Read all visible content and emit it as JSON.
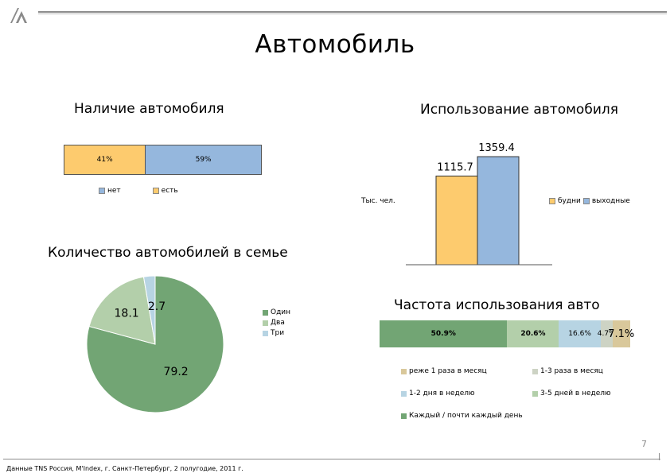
{
  "slide": {
    "title": "Автомобиль",
    "page_number": "7",
    "footer_source": "Данные TNS Россия, M'Index, г. Санкт-Петербург, 2 полугодие, 2011 г."
  },
  "chart_data": [
    {
      "id": "ownership",
      "type": "bar",
      "title": "Наличие автомобиля",
      "stacked": true,
      "orientation": "horizontal",
      "series": [
        {
          "name": "есть",
          "value": 41,
          "label": "41%",
          "color": "#FDCB6E"
        },
        {
          "name": "нет",
          "value": 59,
          "label": "59%",
          "color": "#95B7DD"
        }
      ],
      "legend": [
        "нет",
        "есть"
      ],
      "legend_position": "bottom"
    },
    {
      "id": "usage",
      "type": "bar",
      "title": "Использование автомобиля",
      "ylabel": "Тыс. чел.",
      "ylim": [
        0,
        1400
      ],
      "series": [
        {
          "name": "будни",
          "value": 1115.7,
          "label": "1115.7",
          "color": "#FDCB6E"
        },
        {
          "name": "выходные",
          "value": 1359.4,
          "label": "1359.4",
          "color": "#95B7DD"
        }
      ],
      "legend_position": "right"
    },
    {
      "id": "cars_count",
      "type": "pie",
      "title": "Количество автомобилей в семье",
      "slices": [
        {
          "name": "Один",
          "value": 79.2,
          "label": "79.2",
          "color": "#72A574"
        },
        {
          "name": "Два",
          "value": 18.1,
          "label": "18.1",
          "color": "#B3CFAA"
        },
        {
          "name": "Три",
          "value": 2.7,
          "label": "2.7",
          "color": "#B7D4E3"
        }
      ],
      "legend_position": "right"
    },
    {
      "id": "frequency",
      "type": "bar",
      "title": "Частота использования авто",
      "stacked": true,
      "orientation": "horizontal",
      "series": [
        {
          "name": "Каждый / почти каждый день",
          "value": 50.9,
          "label": "50.9%",
          "color": "#72A574"
        },
        {
          "name": "3-5 дней в неделю",
          "value": 20.6,
          "label": "20.6%",
          "color": "#B3CFAA"
        },
        {
          "name": "1-2 дня в неделю",
          "value": 16.6,
          "label": "16.6%",
          "color": "#B7D4E3"
        },
        {
          "name": "1-3 раза в месяц",
          "value": 4.7,
          "label": "4.7%",
          "color": "#CDD3C4"
        },
        {
          "name": "реже 1 раза в месяц",
          "value": 7.1,
          "label": "7.1%",
          "color": "#D9C89B"
        }
      ],
      "legend_rows": [
        [
          "реже 1 раза в месяц",
          "1-3 раза в месяц"
        ],
        [
          "1-2 дня в неделю",
          "3-5 дней в неделю"
        ],
        [
          "Каждый / почти каждый день"
        ]
      ],
      "legend_position": "bottom"
    }
  ]
}
